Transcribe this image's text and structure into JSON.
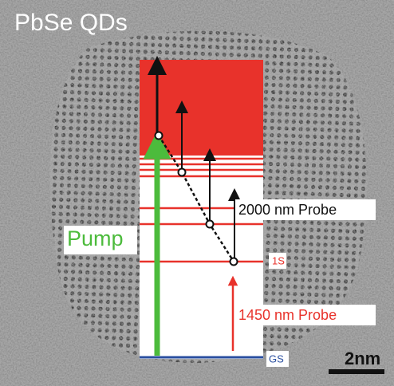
{
  "title": "PbSe QDs",
  "labels": {
    "pump": "Pump",
    "probe_2000": "2000 nm Probe",
    "state_1s": "1S",
    "probe_1450": "1450 nm Probe",
    "ground_state": "GS",
    "scale_bar": "2nm"
  }
}
